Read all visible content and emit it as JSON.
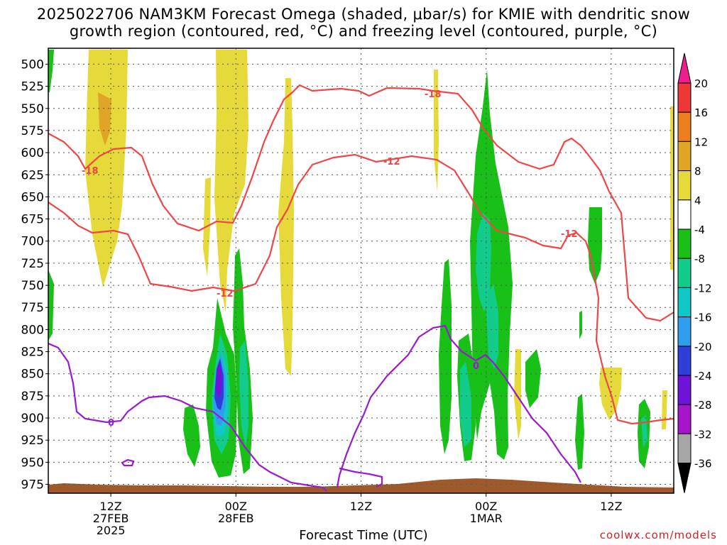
{
  "header": {
    "title_line1": "2025022706 NAM3KM Forecast Omega (shaded, μbar/s) for KMIE with dendritic snow",
    "title_line2": "growth region (contoured, red, °C) and freezing level (contoured, purple, °C)"
  },
  "footer": {
    "xlabel": "Forecast Time (UTC)",
    "credit": "coolwx.com/models"
  },
  "chart_data": {
    "type": "heatmap",
    "x_axis": {
      "label": "Forecast Time (UTC)",
      "ticks": [
        {
          "lines": [
            "12Z",
            "27FEB",
            "2025"
          ],
          "hour": 6
        },
        {
          "lines": [
            "00Z",
            "28FEB"
          ],
          "hour": 18
        },
        {
          "lines": [
            "12Z"
          ],
          "hour": 30
        },
        {
          "lines": [
            "00Z",
            "1MAR"
          ],
          "hour": 42
        },
        {
          "lines": [
            "12Z"
          ],
          "hour": 54
        }
      ],
      "range_hours": [
        0,
        60
      ]
    },
    "y_axis": {
      "unit": "hPa",
      "ticks": [
        500,
        525,
        550,
        575,
        600,
        625,
        650,
        675,
        700,
        725,
        750,
        775,
        800,
        825,
        850,
        875,
        900,
        925,
        950,
        975
      ],
      "range": [
        482,
        985
      ]
    },
    "colorbar": {
      "unit": "μbar/s",
      "bins": [
        {
          "lo": 16,
          "hi": 20,
          "color": "#ee3737"
        },
        {
          "lo": 12,
          "hi": 16,
          "color": "#ed7e1e"
        },
        {
          "lo": 8,
          "hi": 12,
          "color": "#e1a526"
        },
        {
          "lo": 4,
          "hi": 8,
          "color": "#e6d93a"
        },
        {
          "lo": -4,
          "hi": 4,
          "color": "#ffffff"
        },
        {
          "lo": -8,
          "hi": -4,
          "color": "#18c018"
        },
        {
          "lo": -12,
          "hi": -8,
          "color": "#12cc8c"
        },
        {
          "lo": -16,
          "hi": -12,
          "color": "#10c8c8"
        },
        {
          "lo": -20,
          "hi": -16,
          "color": "#2f9df0"
        },
        {
          "lo": -24,
          "hi": -20,
          "color": "#2e3ed8"
        },
        {
          "lo": -28,
          "hi": -24,
          "color": "#6d14d8"
        },
        {
          "lo": -32,
          "hi": -28,
          "color": "#a614cc"
        },
        {
          "lo": -36,
          "hi": -32,
          "color": "#a6a6a6"
        }
      ],
      "top_arrow_color": "#ee1e8e",
      "bottom_arrow_color": "#000000",
      "labels": [
        "20",
        "16",
        "12",
        "8",
        "4",
        "-4",
        "-8",
        "-12",
        "-16",
        "-20",
        "-24",
        "-28",
        "-32",
        "-36"
      ]
    },
    "contour_labels": {
      "red": [
        "-18",
        "-12",
        "-12",
        "-18",
        "-12"
      ],
      "purple": [
        "0",
        "0"
      ]
    },
    "colors": {
      "temperature_contour": "#ef4646",
      "freezing_level": "#9a1ad0",
      "terrain": "#9e5a2b",
      "ascent_weak": "#18c018",
      "ascent_moderate": "#12cc8c",
      "ascent_strong": "#2f9df0",
      "ascent_intense": "#2e3ed8",
      "ascent_extreme": "#6d14d8",
      "descent_weak": "#e6d93a",
      "descent_moderate": "#e1a526"
    },
    "grid": true,
    "legend_placement": "right colorbar"
  }
}
